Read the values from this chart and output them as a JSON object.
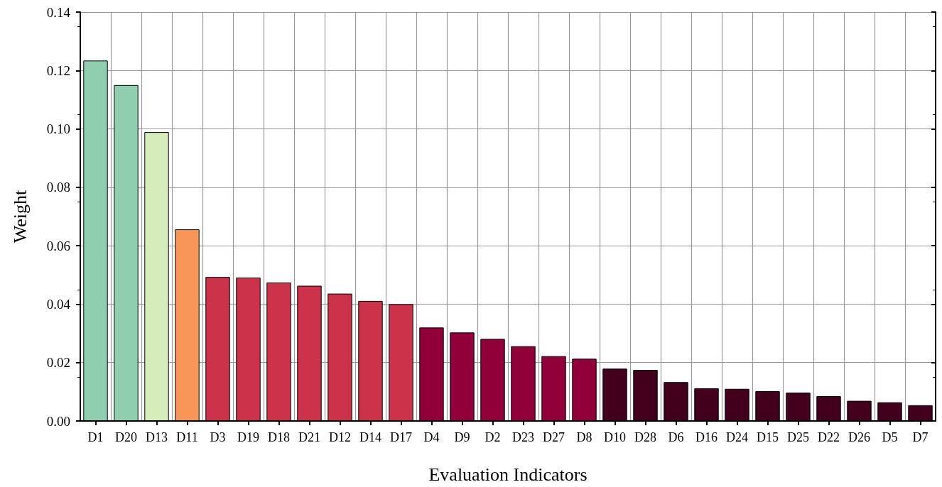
{
  "chart_data": {
    "type": "bar",
    "xlabel": "Evaluation Indicators",
    "ylabel": "Weight",
    "categories": [
      "D1",
      "D20",
      "D13",
      "D11",
      "D3",
      "D19",
      "D18",
      "D21",
      "D12",
      "D14",
      "D17",
      "D4",
      "D9",
      "D2",
      "D23",
      "D27",
      "D8",
      "D10",
      "D28",
      "D6",
      "D16",
      "D24",
      "D15",
      "D25",
      "D22",
      "D26",
      "D5",
      "D7"
    ],
    "values": [
      0.1234,
      0.115,
      0.0989,
      0.0656,
      0.0493,
      0.0491,
      0.0474,
      0.0463,
      0.0436,
      0.0411,
      0.04,
      0.032,
      0.0303,
      0.0281,
      0.0256,
      0.0222,
      0.0213,
      0.0179,
      0.0175,
      0.0133,
      0.0112,
      0.011,
      0.0102,
      0.0097,
      0.0085,
      0.0069,
      0.0064,
      0.0054
    ],
    "colors": [
      "#8fcfb0",
      "#8fcfb0",
      "#d6ecbb",
      "#f79656",
      "#cc334b",
      "#cc334b",
      "#cc334b",
      "#cc334b",
      "#cc334b",
      "#cc334b",
      "#cc334b",
      "#910038",
      "#910038",
      "#910038",
      "#910038",
      "#910038",
      "#910038",
      "#42001c",
      "#42001c",
      "#42001c",
      "#42001c",
      "#42001c",
      "#42001c",
      "#42001c",
      "#42001c",
      "#42001c",
      "#42001c",
      "#42001c"
    ],
    "ylim": [
      0,
      0.14
    ],
    "yticks": [
      {
        "value": 0,
        "label": "0.00"
      },
      {
        "value": 0.02,
        "label": "0.02"
      },
      {
        "value": 0.04,
        "label": "0.04"
      },
      {
        "value": 0.06,
        "label": "0.06"
      },
      {
        "value": 0.08,
        "label": "0.08"
      },
      {
        "value": 0.1,
        "label": "0.10"
      },
      {
        "value": 0.12,
        "label": "0.12"
      },
      {
        "value": 0.14,
        "label": "0.14"
      }
    ],
    "grid": true
  }
}
